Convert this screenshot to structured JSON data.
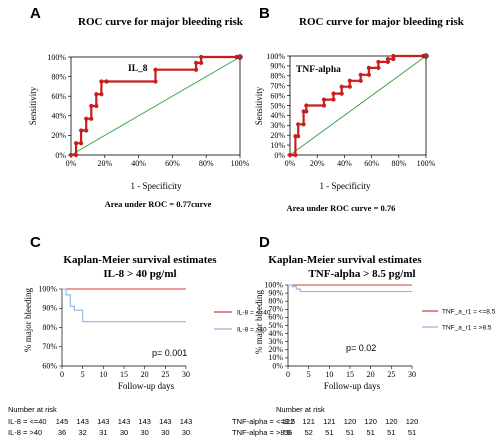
{
  "chart_data": [
    {
      "panel": "A",
      "type": "line",
      "title": "ROC curve for major bleeding risk",
      "xlabel": "1 - Specificity",
      "ylabel": "Sensitivity",
      "series_label": "IL_8",
      "xticks": [
        "0%",
        "20%",
        "40%",
        "60%",
        "80%",
        "100%"
      ],
      "yticks": [
        "0%",
        "20%",
        "40%",
        "60%",
        "80%",
        "100%"
      ],
      "xlim": [
        0,
        1
      ],
      "ylim": [
        0,
        1
      ],
      "roc_x": [
        0,
        0.03,
        0.03,
        0.06,
        0.06,
        0.09,
        0.09,
        0.12,
        0.12,
        0.15,
        0.15,
        0.18,
        0.18,
        0.21,
        0.21,
        0.5,
        0.5,
        0.74,
        0.74,
        0.77,
        0.77,
        0.98,
        1.0
      ],
      "roc_y": [
        0,
        0,
        0.12,
        0.12,
        0.25,
        0.25,
        0.37,
        0.37,
        0.5,
        0.5,
        0.62,
        0.62,
        0.75,
        0.75,
        0.75,
        0.75,
        0.87,
        0.87,
        0.94,
        0.94,
        1.0,
        1.0,
        1.0
      ],
      "reference_line": true,
      "annotation": "Area under ROC = 0.77curve"
    },
    {
      "panel": "B",
      "type": "line",
      "title": "ROC curve for major bleeding risk",
      "xlabel": "1 - Specificity",
      "ylabel": "Sensitivity",
      "series_label": "TNF-alpha",
      "xticks": [
        "0%",
        "20%",
        "40%",
        "60%",
        "80%",
        "100%"
      ],
      "yticks": [
        "0%",
        "10%",
        "20%",
        "30%",
        "40%",
        "50%",
        "60%",
        "70%",
        "80%",
        "90%",
        "100%"
      ],
      "xlim": [
        0,
        1
      ],
      "ylim": [
        0,
        1
      ],
      "roc_x": [
        0,
        0.04,
        0.04,
        0.06,
        0.06,
        0.1,
        0.1,
        0.12,
        0.12,
        0.25,
        0.25,
        0.32,
        0.32,
        0.38,
        0.38,
        0.44,
        0.44,
        0.52,
        0.52,
        0.58,
        0.58,
        0.65,
        0.65,
        0.72,
        0.72,
        0.76,
        0.76,
        0.98,
        1.0
      ],
      "roc_y": [
        0,
        0,
        0.19,
        0.19,
        0.31,
        0.31,
        0.44,
        0.44,
        0.5,
        0.5,
        0.56,
        0.56,
        0.62,
        0.62,
        0.69,
        0.69,
        0.75,
        0.75,
        0.81,
        0.81,
        0.88,
        0.88,
        0.94,
        0.94,
        0.97,
        0.97,
        1.0,
        1.0,
        1.0
      ],
      "reference_line": true,
      "annotation": "Area under ROC curve = 0.76"
    },
    {
      "panel": "C",
      "type": "line",
      "title": "Kaplan-Meier survival estimates",
      "subtitle": "IL-8 > 40 pg/ml",
      "xlabel": "Follow-up days",
      "ylabel": "% major bleeding",
      "xticks": [
        0,
        5,
        10,
        15,
        20,
        25,
        30
      ],
      "yticks": [
        "60%",
        "70%",
        "80%",
        "90%",
        "100%"
      ],
      "xlim": [
        0,
        30
      ],
      "ylim": [
        0.6,
        1.0
      ],
      "series": [
        {
          "name": "IL-8 = <=40",
          "color": "#d43a3a",
          "x": [
            0,
            30
          ],
          "y": [
            1.0,
            1.0
          ]
        },
        {
          "name": "IL-8 = >40",
          "color": "#8fb4de",
          "x": [
            0,
            1,
            1,
            2,
            2,
            3,
            3,
            5,
            5,
            30
          ],
          "y": [
            1.0,
            1.0,
            0.97,
            0.97,
            0.91,
            0.91,
            0.89,
            0.89,
            0.83,
            0.83
          ]
        }
      ],
      "p_value": "p=  0.001",
      "risk_table": {
        "header": "Number at risk",
        "rows": [
          {
            "label": "IL-8 = <=40",
            "values": [
              "145",
              "143",
              "143",
              "143",
              "143",
              "143",
              "143"
            ]
          },
          {
            "label": "IL-8 = >40",
            "values": [
              "36",
              "32",
              "31",
              "30",
              "30",
              "30",
              "30"
            ]
          }
        ]
      }
    },
    {
      "panel": "D",
      "type": "line",
      "title": "Kaplan-Meier survival estimates",
      "subtitle": "TNF-alpha > 8.5 pg/ml",
      "xlabel": "Follow-up days",
      "ylabel": "% major bleeding",
      "xticks": [
        0,
        5,
        10,
        15,
        20,
        25,
        30
      ],
      "yticks": [
        "0%",
        "10%",
        "20%",
        "30%",
        "40%",
        "50%",
        "60%",
        "70%",
        "80%",
        "90%",
        "100%"
      ],
      "xlim": [
        0,
        30
      ],
      "ylim": [
        0,
        1.0
      ],
      "series": [
        {
          "name": "TNF_a_r1 = <=8.5",
          "color": "#d43a3a",
          "x": [
            0,
            30
          ],
          "y": [
            1.0,
            1.0
          ]
        },
        {
          "name": "TNF_a_r1 = >8.5",
          "color": "#8fb4de",
          "x": [
            0,
            1,
            1,
            2,
            2,
            3,
            3,
            30
          ],
          "y": [
            1.0,
            1.0,
            0.98,
            0.98,
            0.95,
            0.95,
            0.92,
            0.92
          ]
        }
      ],
      "p_value": "p=  0.02",
      "risk_table": {
        "header": "Number at risk",
        "rows": [
          {
            "label": "TNF-alpha = <=8.5",
            "values": [
              "122",
              "121",
              "121",
              "120",
              "120",
              "120",
              "120"
            ]
          },
          {
            "label": "TNF-alpha = >8.5",
            "values": [
              "56",
              "52",
              "51",
              "51",
              "51",
              "51",
              "51"
            ]
          }
        ]
      }
    }
  ]
}
